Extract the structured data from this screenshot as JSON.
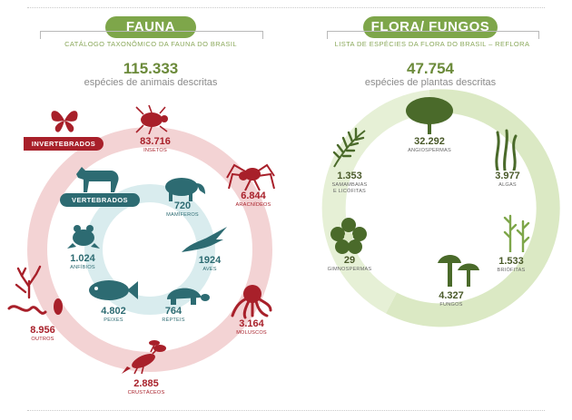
{
  "fauna": {
    "title": "FAUNA",
    "subtitle": "CATÁLOGO TAXONÔMICO DA FAUNA DO BRASIL",
    "total": "115.333",
    "total_desc": "espécies de animais descritas",
    "invertebrates_tag": "INVERTEBRADOS",
    "vertebrates_tag": "VERTEBRADOS",
    "groups": {
      "insetos": {
        "value": "83.716",
        "label": "INSETOS",
        "icon": "beetle-icon"
      },
      "aracnideos": {
        "value": "6.844",
        "label": "ARACNÍDEOS",
        "icon": "spider-icon"
      },
      "moluscos": {
        "value": "3.164",
        "label": "MOLUSCOS",
        "icon": "octopus-icon"
      },
      "crustaceos": {
        "value": "2.885",
        "label": "CRUSTÁCEOS",
        "icon": "lobster-icon"
      },
      "outros": {
        "value": "8.956",
        "label": "OUTROS",
        "icon": "worm-coral-icon"
      },
      "mamiferos": {
        "value": "720",
        "label": "MAMÍFEROS",
        "icon": "tapir-icon"
      },
      "aves": {
        "value": "1924",
        "label": "AVES",
        "icon": "bird-icon"
      },
      "repteis": {
        "value": "764",
        "label": "RÉPTEIS",
        "icon": "turtle-icon"
      },
      "peixes": {
        "value": "4.802",
        "label": "PEIXES",
        "icon": "fish-icon"
      },
      "anfibios": {
        "value": "1.024",
        "label": "ANFÍBIOS",
        "icon": "frog-icon"
      }
    }
  },
  "flora": {
    "title": "FLORA/ FUNGOS",
    "subtitle": "LISTA DE ESPÉCIES DA FLORA DO BRASIL – REFLORA",
    "total": "47.754",
    "total_desc": "espécies de plantas descritas",
    "groups": {
      "angiospermas": {
        "value": "32.292",
        "label": "ANGIOSPERMAS",
        "icon": "tree-icon"
      },
      "algas": {
        "value": "3.977",
        "label": "ALGAS",
        "icon": "seaweed-icon"
      },
      "briofitas": {
        "value": "1.533",
        "label": "BRIÓFITAS",
        "icon": "moss-icon"
      },
      "fungos": {
        "value": "4.327",
        "label": "FUNGOS",
        "icon": "mushroom-icon"
      },
      "gimnospermas": {
        "value": "29",
        "label": "GIMNOSPERMAS",
        "icon": "flower-icon"
      },
      "samambaias": {
        "value": "1.353",
        "label": "SAMAMBAIAS",
        "label2": "E LICÓFITAS",
        "icon": "fern-icon"
      }
    }
  },
  "colors": {
    "fauna_accent": "#a8202a",
    "fauna_ring": "#f3d3d4",
    "vertebrate_accent": "#2d6b72",
    "vertebrate_ring": "#d9ecee",
    "flora_accent": "#7ea64a",
    "flora_ring": "#dbe9c4"
  }
}
